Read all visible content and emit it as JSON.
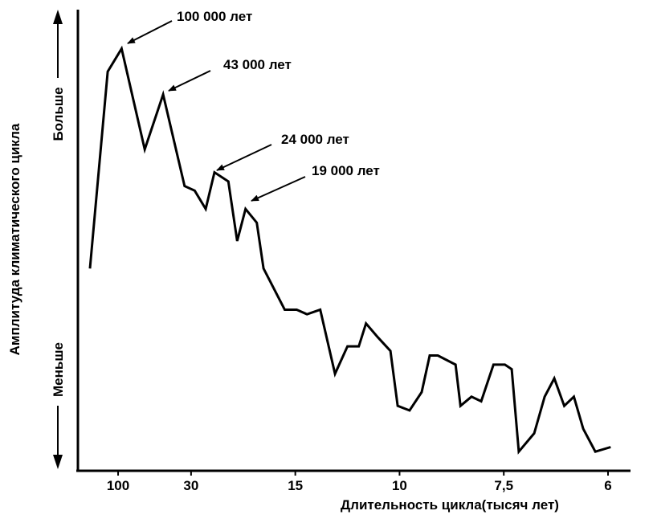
{
  "chart_data": {
    "type": "line",
    "x_label": "Длительность цикла(тысяч лет)",
    "y_label": "Амплитуда климатического цикла",
    "y_high_label": "Больше",
    "y_low_label": "Меньше",
    "color": "#000000",
    "xscale": "reciprocal",
    "xlim": [
      1000,
      6
    ],
    "ylim": [
      0,
      100
    ],
    "xticks": [
      100,
      30,
      15,
      10,
      {
        "value": 7.5,
        "label": "7,5"
      },
      6
    ],
    "x": [
      1000,
      150,
      90,
      54,
      41,
      32,
      29,
      26.3,
      24.5,
      22.1,
      20.8,
      19.7,
      18.4,
      17.7,
      15.8,
      14.9,
      14.2,
      13.4,
      12.6,
      12.0,
      11.5,
      11.2,
      10.75,
      10.3,
      10.06,
      9.69,
      9.34,
      9.12,
      8.91,
      8.48,
      8.37,
      8.13,
      7.93,
      7.69,
      7.48,
      7.36,
      7.24,
      6.99,
      6.83,
      6.69,
      6.55,
      6.42,
      6.3,
      6.15,
      5.97
    ],
    "values": [
      44,
      87,
      92,
      70,
      82,
      62,
      61,
      57,
      65,
      63,
      50,
      57,
      54,
      44,
      35,
      35,
      34,
      35,
      21,
      27,
      27,
      32,
      29,
      26,
      14,
      13,
      17,
      25,
      25,
      23,
      14,
      16,
      15,
      23,
      23,
      22,
      4,
      8,
      16,
      20,
      14,
      16,
      9,
      4,
      5
    ],
    "annotations": [
      {
        "text": "100 000 лет"
      },
      {
        "text": "43 000 лет"
      },
      {
        "text": "24 000 лет"
      },
      {
        "text": "19 000 лет"
      }
    ]
  }
}
